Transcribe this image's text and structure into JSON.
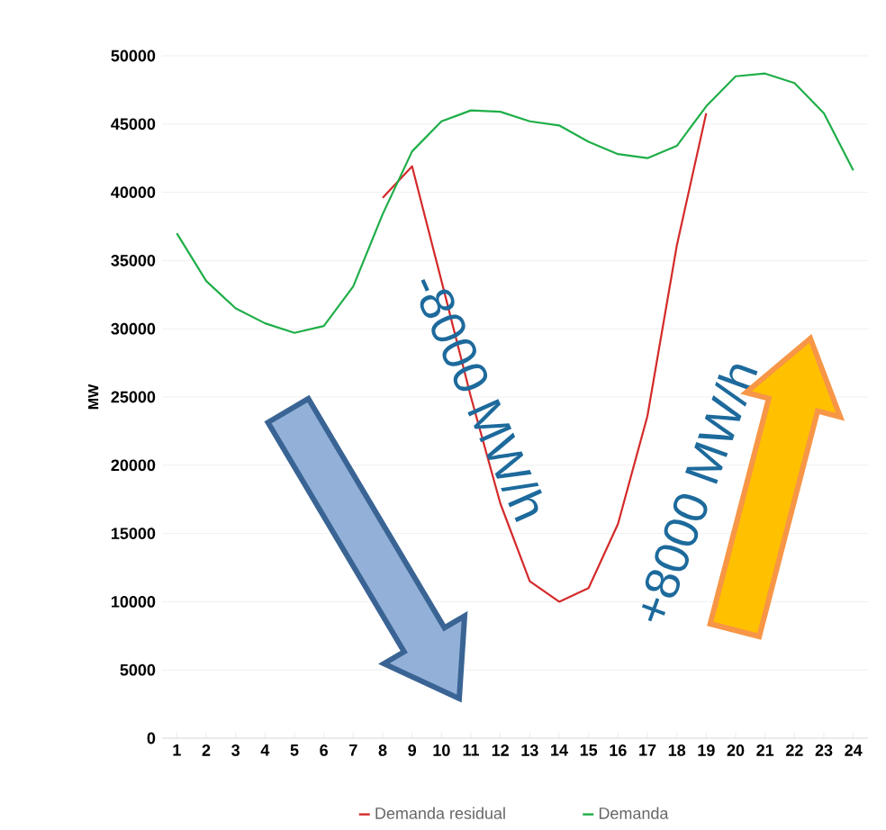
{
  "chart_data": {
    "type": "line",
    "ylabel": "MW",
    "categories": [
      "1",
      "2",
      "3",
      "4",
      "5",
      "6",
      "7",
      "8",
      "9",
      "10",
      "11",
      "12",
      "13",
      "14",
      "15",
      "16",
      "17",
      "18",
      "19",
      "20",
      "21",
      "22",
      "23",
      "24"
    ],
    "series": [
      {
        "name": "Demanda residual",
        "color": "#d42a2a",
        "values": [
          null,
          null,
          null,
          null,
          null,
          null,
          null,
          39600,
          41900,
          33500,
          25000,
          17200,
          11500,
          10000,
          11000,
          15700,
          23600,
          36100,
          45800,
          null,
          null,
          null,
          null,
          null
        ]
      },
      {
        "name": "Demanda",
        "color": "#1fae48",
        "values": [
          37000,
          33500,
          31500,
          30400,
          29700,
          30200,
          33100,
          38400,
          43000,
          45200,
          46000,
          45900,
          45200,
          44900,
          43700,
          42800,
          42500,
          43400,
          46300,
          48500,
          48700,
          48000,
          45800,
          41600
        ]
      }
    ],
    "ylim": [
      0,
      50000
    ],
    "yticks": [
      0,
      5000,
      10000,
      15000,
      20000,
      25000,
      30000,
      35000,
      40000,
      45000,
      50000
    ],
    "grid": "y",
    "legend": "bottom",
    "line_style": "solid",
    "annotations": [
      "-8000 MW/h",
      "+8000 MW/h"
    ]
  }
}
